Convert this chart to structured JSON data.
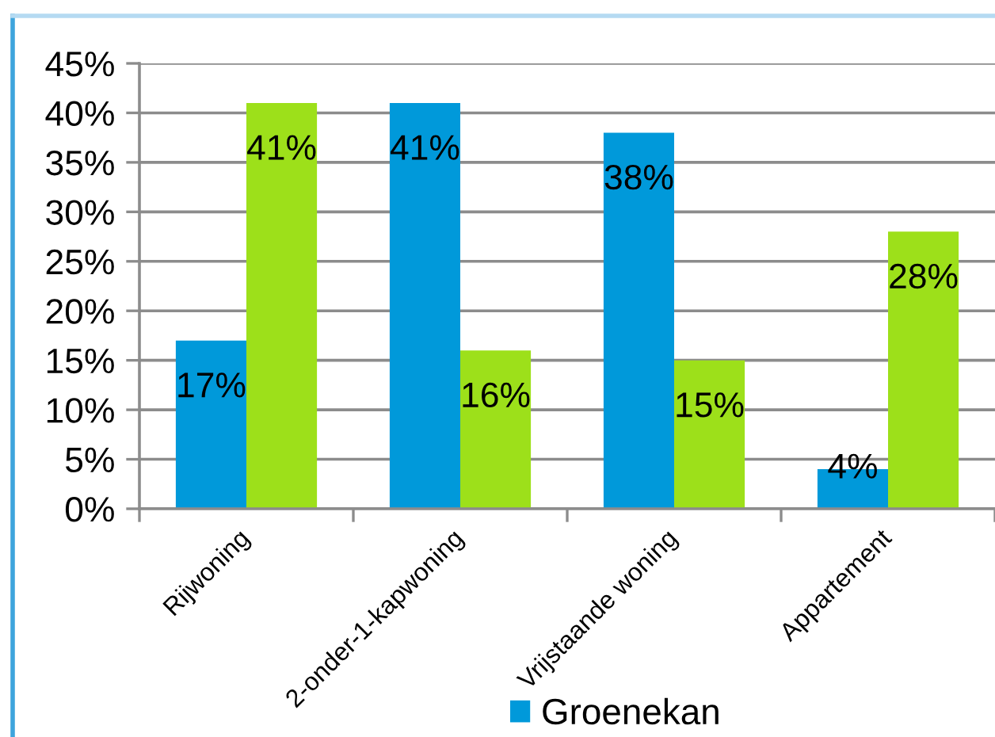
{
  "chart_data": {
    "type": "bar",
    "categories": [
      "Rijwoning",
      "2-onder-1-kapwoning",
      "Vrijstaande woning",
      "Appartement"
    ],
    "series": [
      {
        "name": "Groenekan",
        "color": "#0099da",
        "values": [
          17,
          41,
          38,
          4
        ],
        "value_labels": [
          "17%",
          "41%",
          "38%",
          "4%"
        ]
      },
      {
        "color": "#9de01a",
        "values": [
          41,
          16,
          15,
          28
        ],
        "value_labels": [
          "41%",
          "16%",
          "15%",
          "28%"
        ]
      }
    ],
    "ylim": [
      0,
      45
    ],
    "yticks": [
      {
        "value": 0,
        "label": "0%"
      },
      {
        "value": 5,
        "label": "5%"
      },
      {
        "value": 10,
        "label": "10%"
      },
      {
        "value": 15,
        "label": "15%"
      },
      {
        "value": 20,
        "label": "20%"
      },
      {
        "value": 25,
        "label": "25%"
      },
      {
        "value": 30,
        "label": "30%"
      },
      {
        "value": 35,
        "label": "35%"
      },
      {
        "value": 40,
        "label": "40%"
      },
      {
        "value": 45,
        "label": "45%"
      }
    ],
    "grid": "y",
    "legend": "bottom"
  }
}
